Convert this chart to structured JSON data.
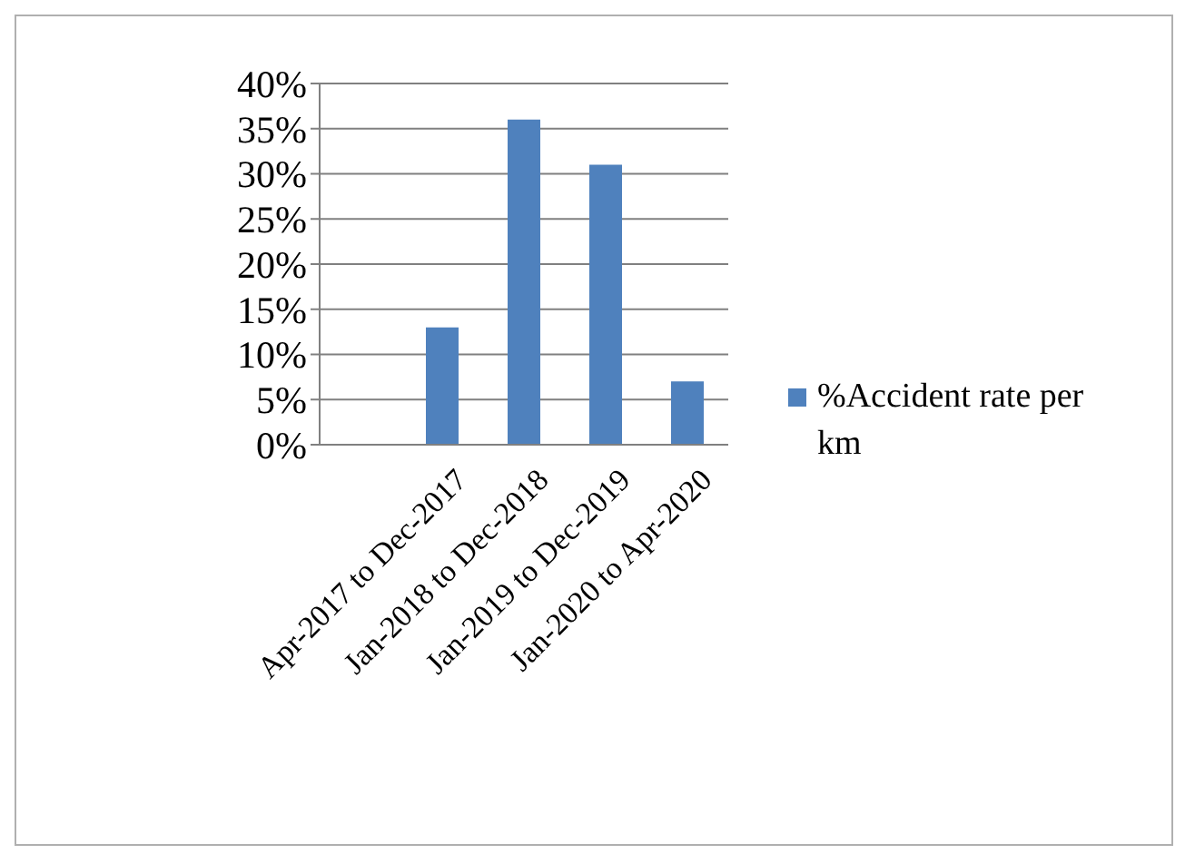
{
  "chart_data": {
    "type": "bar",
    "categories": [
      null,
      "Apr-2017 to Dec-2017",
      "Jan-2018 to Dec-2018",
      "Jan-2019 to Dec-2019",
      "Jan-2020 to Apr-2020"
    ],
    "series": [
      {
        "name": "%Accident rate per km",
        "color": "#4f81bd",
        "values": [
          null,
          13,
          36,
          31,
          7
        ]
      }
    ],
    "ylim": [
      0,
      40
    ],
    "yticks": [
      {
        "value": 0,
        "label": "0%"
      },
      {
        "value": 5,
        "label": "5%"
      },
      {
        "value": 10,
        "label": "10%"
      },
      {
        "value": 15,
        "label": "15%"
      },
      {
        "value": 20,
        "label": "20%"
      },
      {
        "value": 25,
        "label": "25%"
      },
      {
        "value": 30,
        "label": "30%"
      },
      {
        "value": 35,
        "label": "35%"
      },
      {
        "value": 40,
        "label": "40%"
      }
    ],
    "grid": "y",
    "legend": "right"
  }
}
